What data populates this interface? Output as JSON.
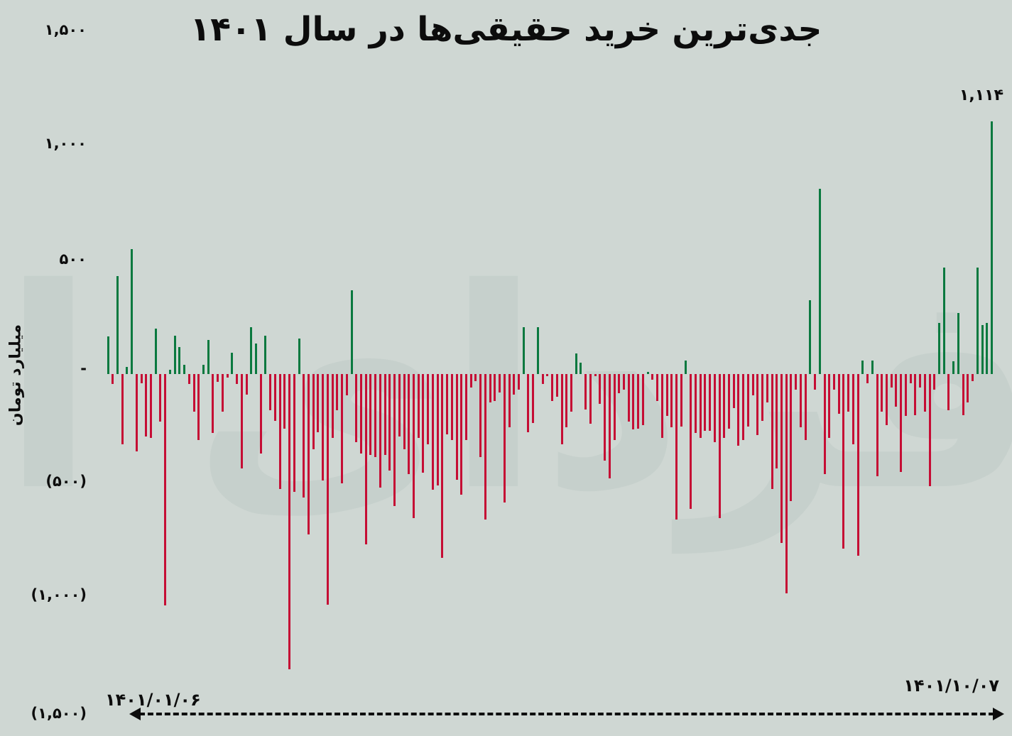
{
  "title": "جدی‌ترین خرید حقیقی‌ها در سال ۱۴۰۱",
  "watermark": "فردای اقتصاد",
  "y_axis": {
    "unit_label": "میلیارد تومان",
    "ticks": [
      {
        "label": "۱,۵۰۰",
        "value": 1500
      },
      {
        "label": "۱,۰۰۰",
        "value": 1000
      },
      {
        "label": "۵۰۰",
        "value": 500
      },
      {
        "label": "-",
        "value": 0
      },
      {
        "label": "(۵۰۰)",
        "value": -500
      },
      {
        "label": "(۱,۰۰۰)",
        "value": -1000
      },
      {
        "label": "(۱,۵۰۰)",
        "value": -1500
      }
    ]
  },
  "x_axis": {
    "start_date": "۱۴۰۱/۰۱/۰۶",
    "end_date": "۱۴۰۱/۱۰/۰۷"
  },
  "annotation": {
    "max_label": "۱,۱۱۴",
    "max_value": 1114
  },
  "colors": {
    "positive": "#0a793f",
    "negative": "#c50d34",
    "background": "#cfd7d3",
    "watermark": "#bcc9c4",
    "text": "#0c0c0c"
  },
  "chart_data": {
    "type": "bar",
    "title": "جدی‌ترین خرید حقیقی‌ها در سال ۱۴۰۱",
    "xlabel": "",
    "ylabel": "میلیارد تومان",
    "ylim": [
      -1500,
      1500
    ],
    "x_range": [
      "1401/01/06",
      "1401/10/07"
    ],
    "grid": false,
    "legend": false,
    "values": [
      165,
      -45,
      430,
      -310,
      30,
      550,
      -340,
      -40,
      -275,
      -280,
      200,
      -210,
      -1020,
      20,
      170,
      120,
      40,
      -45,
      -165,
      -290,
      40,
      150,
      -260,
      -35,
      -165,
      -15,
      95,
      -45,
      -415,
      -90,
      205,
      135,
      -350,
      170,
      -160,
      -205,
      -505,
      -240,
      -1300,
      -520,
      155,
      -545,
      -705,
      -330,
      -255,
      -470,
      -1015,
      -280,
      -160,
      -480,
      -95,
      370,
      -300,
      -350,
      -750,
      -355,
      -365,
      -500,
      -355,
      -425,
      -580,
      -275,
      -330,
      -440,
      -635,
      -280,
      -435,
      -310,
      -510,
      -490,
      -810,
      -265,
      -290,
      -465,
      -530,
      -290,
      -60,
      -30,
      -365,
      -640,
      -125,
      -120,
      -80,
      -565,
      -235,
      -90,
      -70,
      205,
      -255,
      -215,
      205,
      -45,
      -10,
      -120,
      -100,
      -310,
      -235,
      -165,
      90,
      50,
      -155,
      -220,
      -10,
      -130,
      -380,
      -460,
      -290,
      -85,
      -70,
      -210,
      -245,
      -240,
      -225,
      10,
      -25,
      -120,
      -280,
      -185,
      -235,
      -640,
      -230,
      60,
      -595,
      -260,
      -280,
      -250,
      -250,
      -300,
      -635,
      -280,
      -240,
      -150,
      -315,
      -290,
      -230,
      -95,
      -270,
      -205,
      -125,
      -505,
      -415,
      -745,
      -965,
      -560,
      -70,
      -235,
      -290,
      325,
      -70,
      815,
      -440,
      -280,
      -70,
      -175,
      -770,
      -165,
      -310,
      -800,
      60,
      -40,
      60,
      -450,
      -165,
      -225,
      -60,
      -145,
      -430,
      -185,
      -40,
      -180,
      -60,
      -165,
      -495,
      -70,
      225,
      470,
      -160,
      55,
      270,
      -180,
      -125,
      -30,
      470,
      215,
      225,
      1114
    ]
  }
}
